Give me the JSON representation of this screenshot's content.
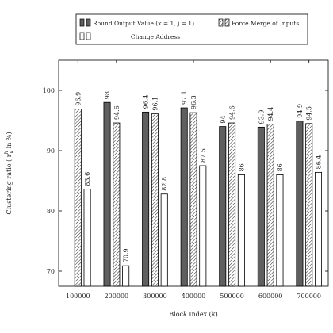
{
  "chart_data": {
    "type": "bar",
    "title": "",
    "xlabel": "Block Index (k)",
    "ylabel": "Clustering ratio ( r",
    "ylabel_sup": "h",
    "ylabel_sub": "k",
    "ylabel_suffix": " in %)",
    "ylim": [
      67.5,
      105
    ],
    "yticks": [
      70,
      80,
      90,
      100
    ],
    "grid": false,
    "legend_position": "top",
    "categories": [
      "100000",
      "200000",
      "300000",
      "400000",
      "500000",
      "600000",
      "700000"
    ],
    "series": [
      {
        "name": "Round Output Value (x = 1, j = 1)",
        "fill": "dark-gray",
        "color": "#5f5f5f",
        "values": [
          null,
          98,
          96.4,
          97.1,
          94,
          93.9,
          94.9
        ]
      },
      {
        "name": "Force Merge of Inputs",
        "fill": "hatched",
        "color": "#ffffff",
        "values": [
          96.9,
          94.6,
          96.1,
          96.3,
          94.6,
          94.4,
          94.5
        ]
      },
      {
        "name": "Change Address",
        "fill": "white",
        "color": "#ffffff",
        "values": [
          83.6,
          70.9,
          82.8,
          87.5,
          86,
          86,
          86.4
        ]
      }
    ]
  }
}
